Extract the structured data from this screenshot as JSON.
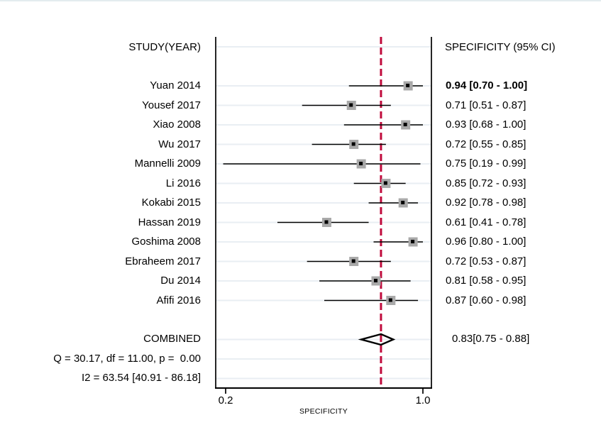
{
  "colors": {
    "reference_line": "#c00b3c",
    "marker_fill": "#a9a9a9",
    "marker_dot": "#000000",
    "gridline": "#e9eef3",
    "axis": "#000000",
    "ci_line": "#000000",
    "diamond_outline": "#000000",
    "top_border": "#e3ecef"
  },
  "chart_data": {
    "type": "forest",
    "title_left": "STUDY(YEAR)",
    "title_right": "SPECIFICITY (95% CI)",
    "xlabel": "SPECIFICITY",
    "x_tick_values": [
      0.2,
      1.0
    ],
    "x_tick_labels": [
      "0.2",
      "1.0"
    ],
    "xlim": [
      0.2,
      1.0
    ],
    "reference_line_x": 0.83,
    "legend_position": "none",
    "grid": "horizontal-row-lines",
    "studies": [
      {
        "label": "Yuan 2014",
        "estimate": 0.94,
        "ci_low": 0.7,
        "ci_high": 1.0,
        "display": "0.94 [0.70 - 1.00]",
        "value_bold": true
      },
      {
        "label": "Yousef 2017",
        "estimate": 0.71,
        "ci_low": 0.51,
        "ci_high": 0.87,
        "display": "0.71 [0.51 - 0.87]",
        "value_bold": false
      },
      {
        "label": "Xiao 2008",
        "estimate": 0.93,
        "ci_low": 0.68,
        "ci_high": 1.0,
        "display": "0.93 [0.68 - 1.00]",
        "value_bold": false
      },
      {
        "label": "Wu 2017",
        "estimate": 0.72,
        "ci_low": 0.55,
        "ci_high": 0.85,
        "display": "0.72 [0.55 - 0.85]",
        "value_bold": false
      },
      {
        "label": "Mannelli 2009",
        "estimate": 0.75,
        "ci_low": 0.19,
        "ci_high": 0.99,
        "display": "0.75 [0.19 - 0.99]",
        "value_bold": false
      },
      {
        "label": "Li 2016",
        "estimate": 0.85,
        "ci_low": 0.72,
        "ci_high": 0.93,
        "display": "0.85 [0.72 - 0.93]",
        "value_bold": false
      },
      {
        "label": "Kokabi 2015",
        "estimate": 0.92,
        "ci_low": 0.78,
        "ci_high": 0.98,
        "display": "0.92 [0.78 - 0.98]",
        "value_bold": false
      },
      {
        "label": "Hassan 2019",
        "estimate": 0.61,
        "ci_low": 0.41,
        "ci_high": 0.78,
        "display": "0.61 [0.41 - 0.78]",
        "value_bold": false
      },
      {
        "label": "Goshima 2008",
        "estimate": 0.96,
        "ci_low": 0.8,
        "ci_high": 1.0,
        "display": "0.96 [0.80 - 1.00]",
        "value_bold": false
      },
      {
        "label": "Ebraheem 2017",
        "estimate": 0.72,
        "ci_low": 0.53,
        "ci_high": 0.87,
        "display": "0.72 [0.53 - 0.87]",
        "value_bold": false
      },
      {
        "label": "Du 2014",
        "estimate": 0.81,
        "ci_low": 0.58,
        "ci_high": 0.95,
        "display": "0.81 [0.58 - 0.95]",
        "value_bold": false
      },
      {
        "label": "Afifi 2016",
        "estimate": 0.87,
        "ci_low": 0.6,
        "ci_high": 0.98,
        "display": "0.87 [0.60 - 0.98]",
        "value_bold": false
      }
    ],
    "combined": {
      "label": "COMBINED",
      "estimate": 0.83,
      "ci_low": 0.75,
      "ci_high": 0.88,
      "display": "0.83[0.75 - 0.88]"
    },
    "heterogeneity": [
      "Q = 30.17, df = 11.00, p =  0.00",
      "I2 = 63.54 [40.91 - 86.18]"
    ]
  }
}
